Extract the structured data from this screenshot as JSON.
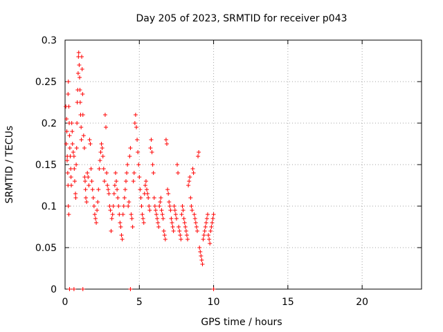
{
  "chart_data": {
    "type": "scatter",
    "title": "Day 205 of 2023, SRMTID for receiver p043",
    "xlabel": "GPS time / hours",
    "ylabel": "SRMTID / TECUs",
    "xlim": [
      0,
      24
    ],
    "ylim": [
      0,
      0.3
    ],
    "xticks": [
      0,
      5,
      10,
      15,
      20
    ],
    "xtick_labels": [
      "0",
      "5",
      "10",
      "15",
      "20"
    ],
    "yticks": [
      0,
      0.05,
      0.1,
      0.15,
      0.2,
      0.25,
      0.3
    ],
    "ytick_labels": [
      "0",
      "0.05",
      "0.1",
      "0.15",
      "0.2",
      "0.25",
      "0.3"
    ],
    "grid": true,
    "marker": "+",
    "color": "#ff0000",
    "series": [
      {
        "name": "SRMTID",
        "points": [
          [
            0.05,
            0.22
          ],
          [
            0.1,
            0.205
          ],
          [
            0.12,
            0.19
          ],
          [
            0.15,
            0.16
          ],
          [
            0.18,
            0.14
          ],
          [
            0.2,
            0.125
          ],
          [
            0.22,
            0.1
          ],
          [
            0.25,
            0.09
          ],
          [
            0.08,
            0.175
          ],
          [
            0.14,
            0.155
          ],
          [
            0.2,
            0.235
          ],
          [
            0.22,
            0.25
          ],
          [
            0.25,
            0.22
          ],
          [
            0.28,
            0.2
          ],
          [
            0.3,
            0.185
          ],
          [
            0.32,
            0.17
          ],
          [
            0.35,
            0.16
          ],
          [
            0.38,
            0.145
          ],
          [
            0.4,
            0.135
          ],
          [
            0.42,
            0.125
          ],
          [
            0.45,
            0.2
          ],
          [
            0.48,
            0.19
          ],
          [
            0.5,
            0.175
          ],
          [
            0.55,
            0.165
          ],
          [
            0.6,
            0.16
          ],
          [
            0.62,
            0.145
          ],
          [
            0.65,
            0.13
          ],
          [
            0.7,
            0.115
          ],
          [
            0.72,
            0.11
          ],
          [
            0.75,
            0.15
          ],
          [
            0.78,
            0.17
          ],
          [
            0.8,
            0.2
          ],
          [
            0.82,
            0.225
          ],
          [
            0.85,
            0.24
          ],
          [
            0.88,
            0.26
          ],
          [
            0.9,
            0.28
          ],
          [
            0.92,
            0.285
          ],
          [
            0.95,
            0.27
          ],
          [
            0.98,
            0.255
          ],
          [
            1.0,
            0.24
          ],
          [
            1.02,
            0.225
          ],
          [
            1.05,
            0.21
          ],
          [
            1.08,
            0.195
          ],
          [
            1.1,
            0.18
          ],
          [
            1.12,
            0.28
          ],
          [
            1.15,
            0.265
          ],
          [
            1.18,
            0.235
          ],
          [
            1.2,
            0.21
          ],
          [
            1.25,
            0.185
          ],
          [
            1.3,
            0.17
          ],
          [
            1.32,
            0.135
          ],
          [
            1.35,
            0.13
          ],
          [
            1.38,
            0.12
          ],
          [
            1.4,
            0.11
          ],
          [
            1.45,
            0.105
          ],
          [
            1.5,
            0.14
          ],
          [
            1.55,
            0.135
          ],
          [
            1.6,
            0.125
          ],
          [
            1.65,
            0.18
          ],
          [
            1.7,
            0.175
          ],
          [
            1.75,
            0.145
          ],
          [
            1.8,
            0.13
          ],
          [
            1.85,
            0.12
          ],
          [
            1.9,
            0.11
          ],
          [
            1.95,
            0.1
          ],
          [
            2.0,
            0.09
          ],
          [
            2.05,
            0.085
          ],
          [
            2.1,
            0.08
          ],
          [
            2.15,
            0.095
          ],
          [
            2.2,
            0.105
          ],
          [
            2.25,
            0.12
          ],
          [
            2.3,
            0.145
          ],
          [
            2.35,
            0.155
          ],
          [
            2.4,
            0.165
          ],
          [
            2.45,
            0.175
          ],
          [
            2.5,
            0.17
          ],
          [
            2.55,
            0.16
          ],
          [
            2.6,
            0.145
          ],
          [
            2.65,
            0.13
          ],
          [
            2.7,
            0.21
          ],
          [
            2.75,
            0.195
          ],
          [
            2.8,
            0.14
          ],
          [
            2.85,
            0.125
          ],
          [
            2.9,
            0.12
          ],
          [
            2.95,
            0.115
          ],
          [
            3.0,
            0.1
          ],
          [
            3.05,
            0.095
          ],
          [
            3.1,
            0.07
          ],
          [
            3.15,
            0.085
          ],
          [
            3.2,
            0.09
          ],
          [
            3.25,
            0.1
          ],
          [
            3.3,
            0.115
          ],
          [
            3.35,
            0.125
          ],
          [
            3.4,
            0.14
          ],
          [
            3.45,
            0.13
          ],
          [
            3.5,
            0.12
          ],
          [
            3.55,
            0.11
          ],
          [
            3.6,
            0.1
          ],
          [
            3.65,
            0.09
          ],
          [
            3.7,
            0.08
          ],
          [
            3.75,
            0.075
          ],
          [
            3.8,
            0.065
          ],
          [
            3.85,
            0.06
          ],
          [
            3.9,
            0.09
          ],
          [
            3.95,
            0.1
          ],
          [
            4.0,
            0.11
          ],
          [
            4.05,
            0.12
          ],
          [
            4.1,
            0.13
          ],
          [
            4.15,
            0.14
          ],
          [
            4.2,
            0.15
          ],
          [
            4.25,
            0.1
          ],
          [
            4.3,
            0.105
          ],
          [
            4.35,
            0.16
          ],
          [
            4.4,
            0.17
          ],
          [
            4.45,
            0.09
          ],
          [
            4.5,
            0.085
          ],
          [
            4.55,
            0.075
          ],
          [
            4.6,
            0.13
          ],
          [
            4.65,
            0.14
          ],
          [
            4.7,
            0.2
          ],
          [
            4.75,
            0.21
          ],
          [
            4.8,
            0.195
          ],
          [
            4.85,
            0.18
          ],
          [
            4.9,
            0.165
          ],
          [
            4.95,
            0.15
          ],
          [
            5.0,
            0.135
          ],
          [
            5.05,
            0.12
          ],
          [
            5.1,
            0.11
          ],
          [
            5.15,
            0.1
          ],
          [
            5.2,
            0.09
          ],
          [
            5.25,
            0.085
          ],
          [
            5.3,
            0.08
          ],
          [
            5.35,
            0.115
          ],
          [
            5.4,
            0.125
          ],
          [
            5.45,
            0.13
          ],
          [
            5.5,
            0.12
          ],
          [
            5.55,
            0.115
          ],
          [
            5.6,
            0.11
          ],
          [
            5.65,
            0.1
          ],
          [
            5.7,
            0.095
          ],
          [
            5.75,
            0.17
          ],
          [
            5.8,
            0.18
          ],
          [
            5.85,
            0.165
          ],
          [
            5.9,
            0.15
          ],
          [
            5.95,
            0.14
          ],
          [
            6.0,
            0.11
          ],
          [
            6.05,
            0.1
          ],
          [
            6.1,
            0.095
          ],
          [
            6.15,
            0.09
          ],
          [
            6.2,
            0.085
          ],
          [
            6.25,
            0.08
          ],
          [
            6.3,
            0.075
          ],
          [
            6.35,
            0.1
          ],
          [
            6.4,
            0.105
          ],
          [
            6.45,
            0.11
          ],
          [
            6.5,
            0.095
          ],
          [
            6.55,
            0.09
          ],
          [
            6.6,
            0.085
          ],
          [
            6.65,
            0.07
          ],
          [
            6.7,
            0.065
          ],
          [
            6.75,
            0.06
          ],
          [
            6.8,
            0.18
          ],
          [
            6.85,
            0.175
          ],
          [
            6.9,
            0.12
          ],
          [
            6.95,
            0.115
          ],
          [
            7.0,
            0.105
          ],
          [
            7.05,
            0.1
          ],
          [
            7.1,
            0.095
          ],
          [
            7.15,
            0.085
          ],
          [
            7.2,
            0.08
          ],
          [
            7.25,
            0.075
          ],
          [
            7.3,
            0.07
          ],
          [
            7.35,
            0.1
          ],
          [
            7.4,
            0.095
          ],
          [
            7.45,
            0.09
          ],
          [
            7.5,
            0.085
          ],
          [
            7.55,
            0.15
          ],
          [
            7.6,
            0.14
          ],
          [
            7.65,
            0.075
          ],
          [
            7.7,
            0.07
          ],
          [
            7.75,
            0.065
          ],
          [
            7.8,
            0.06
          ],
          [
            7.85,
            0.09
          ],
          [
            7.9,
            0.1
          ],
          [
            7.95,
            0.095
          ],
          [
            8.0,
            0.085
          ],
          [
            8.05,
            0.08
          ],
          [
            8.1,
            0.075
          ],
          [
            8.15,
            0.07
          ],
          [
            8.2,
            0.065
          ],
          [
            8.25,
            0.06
          ],
          [
            8.3,
            0.125
          ],
          [
            8.35,
            0.13
          ],
          [
            8.4,
            0.135
          ],
          [
            8.45,
            0.11
          ],
          [
            8.5,
            0.1
          ],
          [
            8.55,
            0.095
          ],
          [
            8.6,
            0.145
          ],
          [
            8.65,
            0.14
          ],
          [
            8.7,
            0.09
          ],
          [
            8.75,
            0.085
          ],
          [
            8.8,
            0.08
          ],
          [
            8.85,
            0.075
          ],
          [
            8.9,
            0.07
          ],
          [
            8.95,
            0.16
          ],
          [
            9.0,
            0.165
          ],
          [
            9.05,
            0.05
          ],
          [
            9.1,
            0.045
          ],
          [
            9.15,
            0.04
          ],
          [
            9.2,
            0.035
          ],
          [
            9.25,
            0.03
          ],
          [
            9.3,
            0.06
          ],
          [
            9.35,
            0.065
          ],
          [
            9.4,
            0.07
          ],
          [
            9.45,
            0.075
          ],
          [
            9.5,
            0.08
          ],
          [
            9.55,
            0.085
          ],
          [
            9.6,
            0.09
          ],
          [
            9.65,
            0.065
          ],
          [
            9.7,
            0.06
          ],
          [
            9.75,
            0.055
          ],
          [
            9.8,
            0.07
          ],
          [
            9.85,
            0.075
          ],
          [
            9.9,
            0.08
          ],
          [
            9.95,
            0.085
          ],
          [
            10.0,
            0.09
          ],
          [
            0.3,
            0.0
          ],
          [
            0.6,
            0.0
          ],
          [
            1.2,
            0.0
          ],
          [
            4.4,
            0.0
          ],
          [
            10.0,
            0.0
          ]
        ]
      }
    ]
  }
}
